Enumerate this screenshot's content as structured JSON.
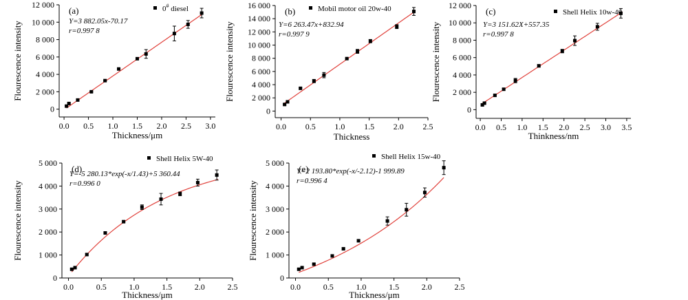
{
  "figure": {
    "background": "#ffffff",
    "fit_color": "#e0403a",
    "marker_color": "#000000"
  },
  "chart_data": [
    {
      "type": "scatter",
      "label": "(a)",
      "legend": "0# diesel",
      "legend_main": "0",
      "legend_sup": "#",
      "legend_rest": " diesel",
      "equation": "Y=3 882.05x-70.17",
      "r_text": "r=0.997 8",
      "xlabel": "Thickness/μm",
      "ylabel": "Flourescence intensity",
      "xlim": [
        -0.1,
        3.1
      ],
      "ylim": [
        -900,
        12000
      ],
      "xticks": [
        0.0,
        0.5,
        1.0,
        1.5,
        2.0,
        2.5,
        3.0
      ],
      "xtick_labels": [
        "0.0",
        "0.5",
        "1.0",
        "1.5",
        "2.0",
        "2.5",
        "3.0"
      ],
      "yticks": [
        0,
        2000,
        4000,
        6000,
        8000,
        10000,
        12000
      ],
      "ytick_labels": [
        "0",
        "2 000",
        "4 000",
        "6 000",
        "8 000",
        "10 000",
        "12 000"
      ],
      "fit": {
        "kind": "linear",
        "a": 3882.05,
        "b": -70.17,
        "x0": 0.05,
        "x1": 2.85
      },
      "points": [
        {
          "x": 0.05,
          "y": 350,
          "err": 80
        },
        {
          "x": 0.1,
          "y": 650,
          "err": 80
        },
        {
          "x": 0.28,
          "y": 1050,
          "err": 60
        },
        {
          "x": 0.56,
          "y": 2000,
          "err": 60
        },
        {
          "x": 0.84,
          "y": 3280,
          "err": 60
        },
        {
          "x": 1.12,
          "y": 4620,
          "err": 60
        },
        {
          "x": 1.5,
          "y": 5800,
          "err": 80
        },
        {
          "x": 1.68,
          "y": 6350,
          "err": 500
        },
        {
          "x": 2.26,
          "y": 8700,
          "err": 850
        },
        {
          "x": 2.54,
          "y": 9750,
          "err": 450
        },
        {
          "x": 2.82,
          "y": 11050,
          "err": 550
        }
      ]
    },
    {
      "type": "scatter",
      "label": "(b)",
      "legend": "Mobil motor oil 20w-40",
      "equation": "Y=6 263.47x+832.94",
      "r_text": "r=0.997 9",
      "xlabel": "Thickness",
      "ylabel": "Flourescence intensity",
      "xlim": [
        -0.1,
        2.5
      ],
      "ylim": [
        -1000,
        16000
      ],
      "xticks": [
        0.0,
        0.5,
        1.0,
        1.5,
        2.0,
        2.5
      ],
      "xtick_labels": [
        "0.0",
        "0.5",
        "1.0",
        "1.5",
        "2.0",
        "2.5"
      ],
      "yticks": [
        0,
        2000,
        4000,
        6000,
        8000,
        10000,
        12000,
        14000,
        16000
      ],
      "ytick_labels": [
        "0",
        "2 000",
        "4 000",
        "6 000",
        "8 000",
        "10 000",
        "12 000",
        "14 000",
        "16 000"
      ],
      "fit": {
        "kind": "linear",
        "a": 6263.47,
        "b": 832.94,
        "x0": 0.05,
        "x1": 2.26
      },
      "points": [
        {
          "x": 0.06,
          "y": 1000,
          "err": 100
        },
        {
          "x": 0.11,
          "y": 1400,
          "err": 100
        },
        {
          "x": 0.33,
          "y": 3450,
          "err": 100
        },
        {
          "x": 0.56,
          "y": 4550,
          "err": 250
        },
        {
          "x": 0.73,
          "y": 5450,
          "err": 400
        },
        {
          "x": 1.12,
          "y": 7950,
          "err": 100
        },
        {
          "x": 1.3,
          "y": 9050,
          "err": 300
        },
        {
          "x": 1.52,
          "y": 10600,
          "err": 250
        },
        {
          "x": 1.97,
          "y": 12800,
          "err": 300
        },
        {
          "x": 2.26,
          "y": 15100,
          "err": 600
        }
      ]
    },
    {
      "type": "scatter",
      "label": "(c)",
      "legend": "Shell Helix 10w-40",
      "equation": "Y=3 151.62X+557.35",
      "r_text": "r=0.997 8",
      "xlabel": "Thinkness/nm",
      "ylabel": "Flourescence intensity",
      "xlim": [
        -0.1,
        3.6
      ],
      "ylim": [
        -1000,
        12000
      ],
      "xticks": [
        0.0,
        0.5,
        1.0,
        1.5,
        2.0,
        2.5,
        3.0,
        3.5
      ],
      "xtick_labels": [
        "0.0",
        "0.5",
        "1.0",
        "1.5",
        "2.0",
        "2.5",
        "3.0",
        "3.5"
      ],
      "yticks": [
        0,
        2000,
        4000,
        6000,
        8000,
        10000,
        12000
      ],
      "ytick_labels": [
        "0",
        "2 000",
        "4 000",
        "6 000",
        "8 000",
        "10 000",
        "12 000"
      ],
      "fit": {
        "kind": "linear",
        "a": 3151.62,
        "b": 557.35,
        "x0": 0.05,
        "x1": 3.4
      },
      "points": [
        {
          "x": 0.05,
          "y": 550,
          "err": 100
        },
        {
          "x": 0.1,
          "y": 750,
          "err": 100
        },
        {
          "x": 0.35,
          "y": 1650,
          "err": 100
        },
        {
          "x": 0.56,
          "y": 2350,
          "err": 100
        },
        {
          "x": 0.84,
          "y": 3350,
          "err": 250
        },
        {
          "x": 1.4,
          "y": 5050,
          "err": 150
        },
        {
          "x": 1.96,
          "y": 6750,
          "err": 200
        },
        {
          "x": 2.26,
          "y": 7950,
          "err": 550
        },
        {
          "x": 2.8,
          "y": 9550,
          "err": 400
        },
        {
          "x": 3.36,
          "y": 11100,
          "err": 550
        }
      ]
    },
    {
      "type": "scatter",
      "label": "(d)",
      "legend": "Shell Helix 5W-40",
      "equation": "Y=-5 280.13*exp(-x/1.43)+5 360.44",
      "r_text": "r=0.996 0",
      "xlabel": "Thickness/μm",
      "ylabel": "Flourescence intensity",
      "xlim": [
        -0.1,
        2.5
      ],
      "ylim": [
        0,
        5000
      ],
      "xticks": [
        0.0,
        0.5,
        1.0,
        1.5,
        2.0,
        2.5
      ],
      "xtick_labels": [
        "0.0",
        "0.5",
        "1.0",
        "1.5",
        "2.0",
        "2.5"
      ],
      "yticks": [
        0,
        1000,
        2000,
        3000,
        4000,
        5000
      ],
      "ytick_labels": [
        "0",
        "1 000",
        "2 000",
        "3 000",
        "4 000",
        "5 000"
      ],
      "fit": {
        "kind": "exp",
        "A": -5280.13,
        "t": 1.43,
        "c": 5360.44,
        "x0": 0.05,
        "x1": 2.28
      },
      "points": [
        {
          "x": 0.05,
          "y": 380,
          "err": 30
        },
        {
          "x": 0.1,
          "y": 450,
          "err": 30
        },
        {
          "x": 0.28,
          "y": 1020,
          "err": 40
        },
        {
          "x": 0.56,
          "y": 1960,
          "err": 40
        },
        {
          "x": 0.84,
          "y": 2450,
          "err": 40
        },
        {
          "x": 1.12,
          "y": 3080,
          "err": 100
        },
        {
          "x": 1.41,
          "y": 3430,
          "err": 250
        },
        {
          "x": 1.7,
          "y": 3660,
          "err": 80
        },
        {
          "x": 1.97,
          "y": 4150,
          "err": 150
        },
        {
          "x": 2.26,
          "y": 4480,
          "err": 220
        }
      ]
    },
    {
      "type": "scatter",
      "label": "(e)",
      "legend": "Shell Helix 15w-40",
      "equation": "Y=2 193.80*exp(-x/-2.12)-1 999.89",
      "r_text": "r=0.996 4",
      "xlabel": "Thickness/μm",
      "ylabel": "Flourescence intensity",
      "xlim": [
        -0.1,
        2.5
      ],
      "ylim": [
        0,
        5000
      ],
      "xticks": [
        0.0,
        0.5,
        1.0,
        1.5,
        2.0,
        2.5
      ],
      "xtick_labels": [
        "0.0",
        "0.5",
        "1.0",
        "1.5",
        "2.0",
        "2.5"
      ],
      "yticks": [
        0,
        1000,
        2000,
        3000,
        4000,
        5000
      ],
      "ytick_labels": [
        "0",
        "1 000",
        "2 000",
        "3 000",
        "4 000",
        "5 000"
      ],
      "fit": {
        "kind": "exp",
        "A": 2193.8,
        "t": -2.12,
        "c": -1999.89,
        "x0": 0.05,
        "x1": 2.26
      },
      "points": [
        {
          "x": 0.05,
          "y": 380,
          "err": 30
        },
        {
          "x": 0.1,
          "y": 450,
          "err": 30
        },
        {
          "x": 0.28,
          "y": 600,
          "err": 30
        },
        {
          "x": 0.56,
          "y": 960,
          "err": 40
        },
        {
          "x": 0.73,
          "y": 1270,
          "err": 40
        },
        {
          "x": 0.96,
          "y": 1620,
          "err": 50
        },
        {
          "x": 1.4,
          "y": 2480,
          "err": 180
        },
        {
          "x": 1.69,
          "y": 2970,
          "err": 280
        },
        {
          "x": 1.97,
          "y": 3720,
          "err": 200
        },
        {
          "x": 2.26,
          "y": 4800,
          "err": 300
        }
      ]
    }
  ]
}
